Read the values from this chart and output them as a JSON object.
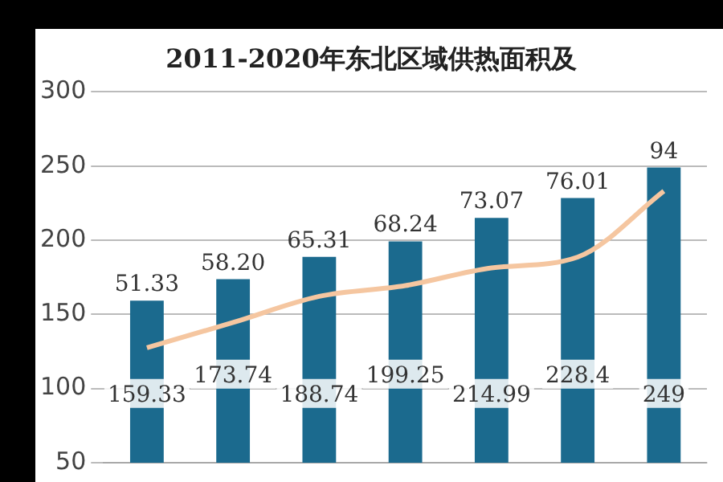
{
  "chart_data": {
    "type": "bar",
    "title": "2011-2020年东北区域供热面积及",
    "categories": [
      null,
      null,
      null,
      null,
      null,
      null,
      null
    ],
    "series": [
      {
        "color": "#1b6a8e",
        "values": [
          159.33,
          173.74,
          188.74,
          199.25,
          214.99,
          228.4,
          249
        ],
        "value_labels": [
          "159.33",
          "173.74",
          "188.74",
          "199.25",
          "214.99",
          "228.4",
          "249"
        ]
      },
      {
        "type": "line",
        "axis": "y2",
        "color": "#f5c6a0",
        "values": [
          51.33,
          58.2,
          65.31,
          68.24,
          73.07,
          76.01,
          94
        ],
        "value_labels": [
          "51.33",
          "58.20",
          "65.31",
          "68.24",
          "73.07",
          "76.01",
          "94"
        ]
      }
    ],
    "ylim": [
      50,
      300
    ],
    "yticks": [
      50,
      100,
      150,
      200,
      250,
      300
    ],
    "y2lim": [
      20,
      121
    ],
    "grid": "y",
    "legend": false,
    "tick_labels": "y",
    "marker": "none",
    "line_style": "solid"
  }
}
